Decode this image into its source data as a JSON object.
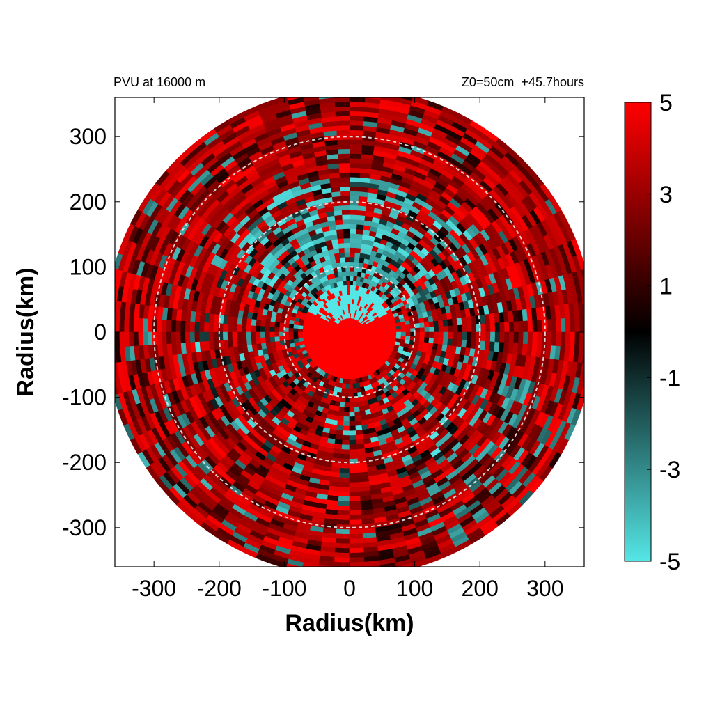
{
  "chart_data": {
    "type": "heatmap",
    "title_left": "PVU at 16000 m",
    "title_right": "Z0=50cm  +45.7hours",
    "xlabel": "Radius(km)",
    "ylabel": "Radius(km)",
    "xlim": [
      -360,
      360
    ],
    "ylim": [
      -360,
      360
    ],
    "x_ticks": [
      -300,
      -200,
      -100,
      0,
      100,
      200,
      300
    ],
    "y_ticks": [
      300,
      200,
      100,
      0,
      -100,
      -200,
      -300
    ],
    "x_tick_labels": [
      "-300",
      "-200",
      "-100",
      "0",
      "100",
      "200",
      "300"
    ],
    "y_tick_labels": [
      "300",
      "200",
      "100",
      "0",
      "-100",
      "-200",
      "-300"
    ],
    "domain_radius_km": 375,
    "reference_circles_km": [
      100,
      200,
      300
    ],
    "colorbar": {
      "range": [
        -5,
        5
      ],
      "tick_labels": [
        "5",
        "3",
        "1",
        "-1",
        "-3",
        "-5"
      ],
      "tick_values": [
        5,
        3,
        1,
        -1,
        -3,
        -5
      ],
      "colors": {
        "min": "#55e6e6",
        "mid": "#000000",
        "max": "#ff0000"
      }
    },
    "field_description_values": {
      "core_value": 5,
      "annulus_inner_km": 70,
      "annulus_outer_km": 240,
      "negative_sector_center_deg": 90
    }
  }
}
